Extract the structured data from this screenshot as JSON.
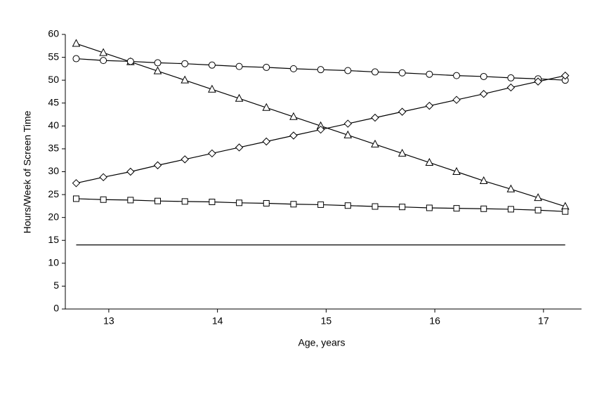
{
  "chart_data": {
    "type": "line",
    "x_label": "Age, years",
    "y_label": "Hours/Week of Screen Time",
    "x": [
      12.7,
      12.95,
      13.2,
      13.45,
      13.7,
      13.95,
      14.2,
      14.45,
      14.7,
      14.95,
      15.2,
      15.45,
      15.7,
      15.95,
      16.2,
      16.45,
      16.7,
      16.95,
      17.2
    ],
    "series": [
      {
        "color": "#000000",
        "marker": "triangle",
        "values": [
          58,
          56,
          54,
          52,
          50,
          48,
          46,
          44,
          42,
          40,
          38,
          36,
          34,
          32,
          30,
          28,
          26.2,
          24.3,
          22.4
        ]
      },
      {
        "color": "#000000",
        "marker": "circle",
        "values": [
          54.7,
          54.3,
          54.1,
          53.8,
          53.6,
          53.3,
          53.0,
          52.8,
          52.5,
          52.3,
          52.1,
          51.8,
          51.6,
          51.3,
          51.0,
          50.8,
          50.5,
          50.3,
          50.0
        ]
      },
      {
        "color": "#000000",
        "marker": "diamond",
        "values": [
          27.5,
          28.8,
          30.0,
          31.4,
          32.7,
          34.0,
          35.3,
          36.6,
          37.9,
          39.2,
          40.5,
          41.8,
          43.1,
          44.4,
          45.7,
          47.0,
          48.4,
          49.7,
          51.0
        ]
      },
      {
        "color": "#000000",
        "marker": "square",
        "values": [
          24.1,
          23.9,
          23.8,
          23.6,
          23.5,
          23.4,
          23.2,
          23.1,
          22.9,
          22.8,
          22.6,
          22.4,
          22.3,
          22.1,
          22.0,
          21.9,
          21.8,
          21.6,
          21.3
        ]
      },
      {
        "color": "#000000",
        "marker": "none",
        "values": [
          14,
          14,
          14,
          14,
          14,
          14,
          14,
          14,
          14,
          14,
          14,
          14,
          14,
          14,
          14,
          14,
          14,
          14,
          14
        ]
      }
    ],
    "xlim": [
      12.6,
      17.35
    ],
    "xticks": [
      13,
      14,
      15,
      16,
      17
    ],
    "ylim": [
      0,
      60
    ],
    "yticks": [
      0,
      5,
      10,
      15,
      20,
      25,
      30,
      35,
      40,
      45,
      50,
      55,
      60
    ],
    "grid": false
  }
}
